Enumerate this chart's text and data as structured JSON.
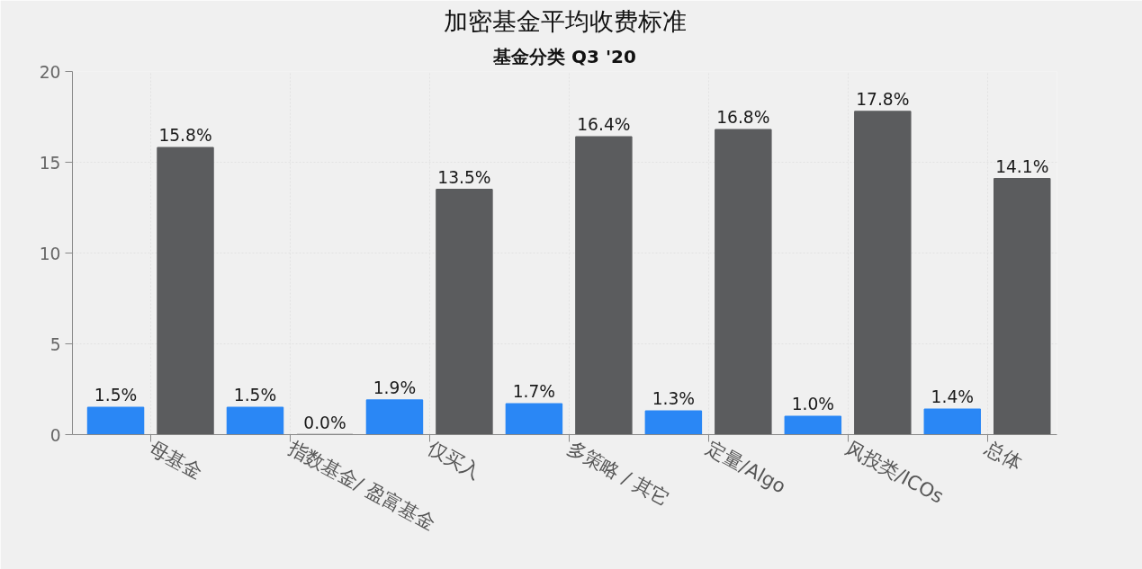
{
  "chart_data": {
    "type": "bar",
    "title": "加密基金平均收费标准",
    "subtitle": "基金分类 Q3 '20",
    "categories": [
      "母基金",
      "指数基金/ 盈富基金",
      "仅买入",
      "多策略 / 其它",
      "定量/Algo",
      "风投类/ICOs",
      "总体"
    ],
    "series": [
      {
        "color": "#2a87f5",
        "values": [
          1.5,
          1.5,
          1.9,
          1.7,
          1.3,
          1.0,
          1.4
        ],
        "value_labels": [
          "1.5%",
          "1.5%",
          "1.9%",
          "1.7%",
          "1.3%",
          "1.0%",
          "1.4%"
        ]
      },
      {
        "color": "#5b5c5e",
        "values": [
          15.8,
          0.0,
          13.5,
          16.4,
          16.8,
          17.8,
          14.1
        ],
        "value_labels": [
          "15.8%",
          "0.0%",
          "13.5%",
          "16.4%",
          "16.8%",
          "17.8%",
          "14.1%"
        ]
      }
    ],
    "ylim": [
      0,
      20
    ],
    "yticks": [
      0,
      5,
      10,
      15,
      20
    ],
    "grid": true
  }
}
